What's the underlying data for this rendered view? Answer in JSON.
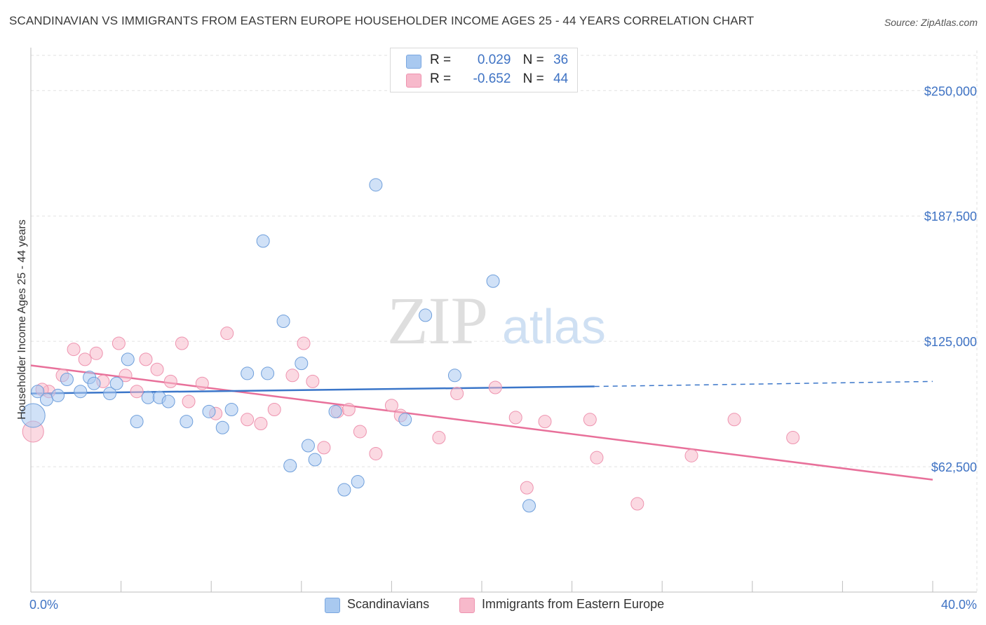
{
  "title": "SCANDINAVIAN VS IMMIGRANTS FROM EASTERN EUROPE HOUSEHOLDER INCOME AGES 25 - 44 YEARS CORRELATION CHART",
  "source": "Source: ZipAtlas.com",
  "watermark": {
    "zip": "ZIP",
    "atlas": "atlas"
  },
  "legend": {
    "rows": [
      {
        "r_label": "R =",
        "r_value": "0.029",
        "n_label": "N =",
        "n_value": "36",
        "color": "#a9c9f0"
      },
      {
        "r_label": "R =",
        "r_value": "-0.652",
        "n_label": "N =",
        "n_value": "44",
        "color": "#f7b9cb"
      }
    ]
  },
  "bottom_legend": [
    {
      "label": "Scandinavians",
      "color": "#a9c9f0"
    },
    {
      "label": "Immigrants from Eastern Europe",
      "color": "#f7b9cb"
    }
  ],
  "colors": {
    "blue": "#3b76c9",
    "pink": "#e8709a",
    "blue_fill": "#a9c9f0",
    "pink_fill": "#f7b9cb",
    "tick": "#3f73c4"
  },
  "chart_data": {
    "type": "scatter",
    "xlabel": "",
    "ylabel": "Householder Income Ages 25 - 44 years",
    "x_tick_labels": [
      "0.0%",
      "40.0%"
    ],
    "y_tick_labels": [
      "$250,000",
      "$187,500",
      "$125,000",
      "$62,500"
    ],
    "y_ticks": [
      250000,
      187500,
      125000,
      62500
    ],
    "xlim": [
      0,
      40
    ],
    "ylim": [
      0,
      270000
    ],
    "series": [
      {
        "name": "Scandinavians",
        "r": 0.029,
        "n": 36,
        "points": [
          {
            "x": 0.3,
            "y": 100000
          },
          {
            "x": 0.7,
            "y": 96000
          },
          {
            "x": 1.2,
            "y": 98000
          },
          {
            "x": 1.6,
            "y": 106000
          },
          {
            "x": 2.2,
            "y": 100000
          },
          {
            "x": 2.6,
            "y": 107000
          },
          {
            "x": 2.8,
            "y": 104000
          },
          {
            "x": 3.5,
            "y": 99000
          },
          {
            "x": 3.8,
            "y": 104000
          },
          {
            "x": 4.3,
            "y": 116000
          },
          {
            "x": 4.7,
            "y": 85000
          },
          {
            "x": 5.2,
            "y": 97000
          },
          {
            "x": 5.7,
            "y": 97000
          },
          {
            "x": 6.1,
            "y": 95000
          },
          {
            "x": 6.9,
            "y": 85000
          },
          {
            "x": 7.9,
            "y": 90000
          },
          {
            "x": 8.5,
            "y": 82000
          },
          {
            "x": 8.9,
            "y": 91000
          },
          {
            "x": 9.6,
            "y": 109000
          },
          {
            "x": 10.3,
            "y": 175000
          },
          {
            "x": 10.5,
            "y": 109000
          },
          {
            "x": 11.2,
            "y": 135000
          },
          {
            "x": 11.5,
            "y": 63000
          },
          {
            "x": 12.0,
            "y": 114000
          },
          {
            "x": 12.3,
            "y": 73000
          },
          {
            "x": 12.6,
            "y": 66000
          },
          {
            "x": 13.5,
            "y": 90000
          },
          {
            "x": 13.9,
            "y": 51000
          },
          {
            "x": 14.5,
            "y": 55000
          },
          {
            "x": 15.3,
            "y": 203000
          },
          {
            "x": 16.6,
            "y": 86000
          },
          {
            "x": 17.5,
            "y": 138000
          },
          {
            "x": 18.8,
            "y": 108000
          },
          {
            "x": 20.5,
            "y": 155000
          },
          {
            "x": 22.1,
            "y": 43000
          },
          {
            "x": 0.1,
            "y": 88000
          }
        ],
        "trend": {
          "x0": 0,
          "y0": 99000,
          "x1": 25,
          "y1": 102500,
          "dash_x1": 40,
          "dash_y1": 105000
        }
      },
      {
        "name": "Immigrants from Eastern Europe",
        "r": -0.652,
        "n": 44,
        "points": [
          {
            "x": 0.1,
            "y": 80000
          },
          {
            "x": 0.8,
            "y": 100000
          },
          {
            "x": 1.4,
            "y": 108000
          },
          {
            "x": 1.9,
            "y": 121000
          },
          {
            "x": 2.4,
            "y": 116000
          },
          {
            "x": 2.9,
            "y": 119000
          },
          {
            "x": 3.2,
            "y": 105000
          },
          {
            "x": 3.9,
            "y": 124000
          },
          {
            "x": 4.2,
            "y": 108000
          },
          {
            "x": 4.7,
            "y": 100000
          },
          {
            "x": 5.1,
            "y": 116000
          },
          {
            "x": 5.6,
            "y": 111000
          },
          {
            "x": 6.2,
            "y": 105000
          },
          {
            "x": 6.7,
            "y": 124000
          },
          {
            "x": 7.0,
            "y": 95000
          },
          {
            "x": 7.6,
            "y": 104000
          },
          {
            "x": 8.2,
            "y": 89000
          },
          {
            "x": 8.7,
            "y": 129000
          },
          {
            "x": 9.6,
            "y": 86000
          },
          {
            "x": 10.2,
            "y": 84000
          },
          {
            "x": 10.8,
            "y": 91000
          },
          {
            "x": 11.6,
            "y": 108000
          },
          {
            "x": 12.1,
            "y": 124000
          },
          {
            "x": 12.5,
            "y": 105000
          },
          {
            "x": 13.0,
            "y": 72000
          },
          {
            "x": 13.6,
            "y": 90000
          },
          {
            "x": 14.1,
            "y": 91000
          },
          {
            "x": 14.6,
            "y": 80000
          },
          {
            "x": 15.3,
            "y": 69000
          },
          {
            "x": 16.0,
            "y": 93000
          },
          {
            "x": 16.4,
            "y": 88000
          },
          {
            "x": 18.1,
            "y": 77000
          },
          {
            "x": 18.9,
            "y": 99000
          },
          {
            "x": 20.6,
            "y": 102000
          },
          {
            "x": 21.5,
            "y": 87000
          },
          {
            "x": 22.0,
            "y": 52000
          },
          {
            "x": 22.8,
            "y": 85000
          },
          {
            "x": 24.8,
            "y": 86000
          },
          {
            "x": 25.1,
            "y": 67000
          },
          {
            "x": 26.9,
            "y": 44000
          },
          {
            "x": 29.3,
            "y": 68000
          },
          {
            "x": 31.2,
            "y": 86000
          },
          {
            "x": 33.8,
            "y": 77000
          },
          {
            "x": 0.5,
            "y": 101000
          }
        ],
        "trend": {
          "x0": 0,
          "y0": 113000,
          "x1": 40,
          "y1": 56000
        }
      }
    ]
  }
}
